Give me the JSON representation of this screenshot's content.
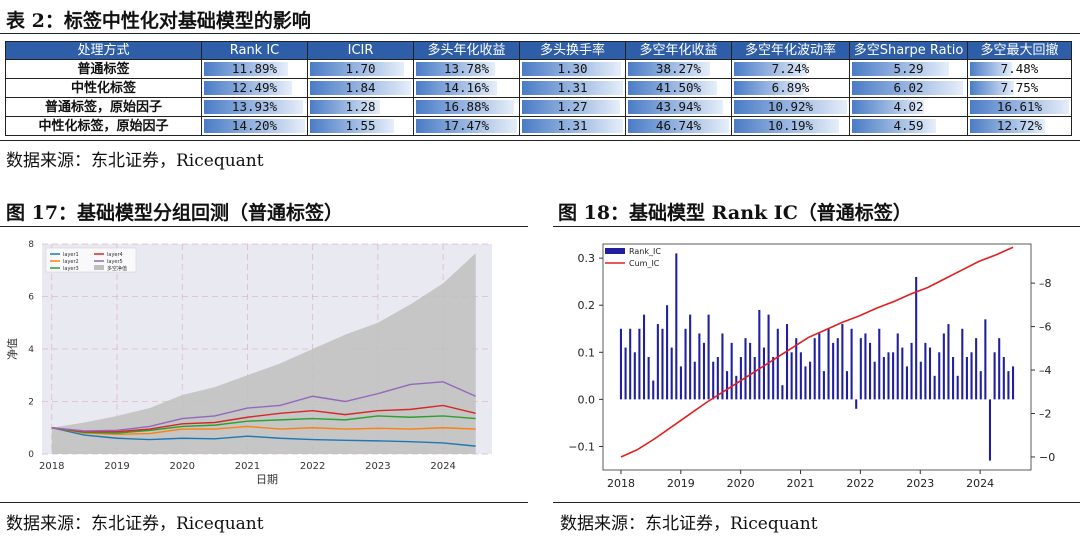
{
  "table": {
    "title": "表 2：标签中性化对基础模型的影响",
    "headers": [
      "处理方式",
      "Rank IC",
      "ICIR",
      "多头年化收益",
      "多头换手率",
      "多空年化收益",
      "多空年化波动率",
      "多空Sharpe Ratio",
      "多空最大回撤"
    ],
    "rows": [
      {
        "label": "普通标签",
        "values": [
          "11.89%",
          "1.70",
          "13.78%",
          "1.30",
          "38.27%",
          "7.24%",
          "5.29",
          "7.48%"
        ],
        "fills": [
          0.84,
          0.93,
          0.79,
          0.98,
          0.82,
          0.66,
          0.86,
          0.45
        ]
      },
      {
        "label": "中性化标签",
        "values": [
          "12.49%",
          "1.84",
          "14.16%",
          "1.31",
          "41.50%",
          "6.89%",
          "6.02",
          "7.75%"
        ],
        "fills": [
          0.88,
          1.0,
          0.81,
          1.0,
          0.89,
          0.63,
          0.98,
          0.47
        ]
      },
      {
        "label": "普通标签，原始因子",
        "values": [
          "13.93%",
          "1.28",
          "16.88%",
          "1.27",
          "43.94%",
          "10.92%",
          "4.02",
          "16.61%"
        ],
        "fills": [
          0.98,
          0.7,
          0.97,
          0.97,
          0.94,
          1.0,
          0.65,
          1.0
        ]
      },
      {
        "label": "中性化标签，原始因子",
        "values": [
          "14.20%",
          "1.55",
          "17.47%",
          "1.31",
          "46.74%",
          "10.19%",
          "4.59",
          "12.72%"
        ],
        "fills": [
          1.0,
          0.84,
          1.0,
          1.0,
          1.0,
          0.93,
          0.75,
          0.77
        ]
      }
    ],
    "source": "数据来源：东北证券，Ricequant"
  },
  "figure17": {
    "title": "图 17：基础模型分组回测（普通标签）",
    "source": "数据来源：东北证券，Ricequant"
  },
  "figure18": {
    "title": "图 18：基础模型 Rank IC（普通标签）",
    "source": "数据来源：东北证券，Ricequant"
  },
  "chart_data": [
    {
      "type": "area",
      "xlabel": "日期",
      "ylabel": "净值",
      "xticks": [
        "2018",
        "2019",
        "2020",
        "2021",
        "2022",
        "2023",
        "2024"
      ],
      "ylim": [
        0,
        8
      ],
      "yticks": [
        0,
        2,
        4,
        6,
        8
      ],
      "grid": true,
      "legend_position": "top-left",
      "x": [
        2018.0,
        2018.5,
        2019.0,
        2019.5,
        2020.0,
        2020.5,
        2021.0,
        2021.5,
        2022.0,
        2022.5,
        2023.0,
        2023.5,
        2024.0,
        2024.5
      ],
      "series": [
        {
          "name": "layer1",
          "color": "#1f77b4",
          "values": [
            1.0,
            0.72,
            0.6,
            0.55,
            0.6,
            0.58,
            0.68,
            0.6,
            0.55,
            0.52,
            0.5,
            0.47,
            0.42,
            0.3
          ]
        },
        {
          "name": "layer2",
          "color": "#ff7f0e",
          "values": [
            1.0,
            0.8,
            0.75,
            0.78,
            0.95,
            0.95,
            1.05,
            0.95,
            1.0,
            0.95,
            0.98,
            0.95,
            1.0,
            0.95
          ]
        },
        {
          "name": "layer3",
          "color": "#2ca02c",
          "values": [
            1.0,
            0.82,
            0.8,
            0.9,
            1.05,
            1.1,
            1.25,
            1.3,
            1.35,
            1.3,
            1.45,
            1.4,
            1.45,
            1.35
          ]
        },
        {
          "name": "layer4",
          "color": "#d62728",
          "values": [
            1.0,
            0.85,
            0.85,
            0.95,
            1.15,
            1.2,
            1.4,
            1.55,
            1.65,
            1.5,
            1.65,
            1.7,
            1.85,
            1.55
          ]
        },
        {
          "name": "layer5",
          "color": "#9467bd",
          "values": [
            1.0,
            0.88,
            0.9,
            1.05,
            1.35,
            1.45,
            1.75,
            1.85,
            2.2,
            2.0,
            2.3,
            2.65,
            2.75,
            2.2
          ]
        },
        {
          "name": "多空净值",
          "color": "#bfbfbf",
          "values": [
            1.0,
            1.2,
            1.45,
            1.75,
            2.25,
            2.55,
            3.0,
            3.45,
            4.0,
            4.55,
            5.0,
            5.7,
            6.5,
            7.65
          ]
        }
      ]
    },
    {
      "type": "bar",
      "xticks": [
        "2018",
        "2019",
        "2020",
        "2021",
        "2022",
        "2023",
        "2024"
      ],
      "ylim": [
        -0.15,
        0.33
      ],
      "yticks": [
        -0.1,
        0.0,
        0.1,
        0.2,
        0.3
      ],
      "y2ticks": [
        0,
        2,
        4,
        6,
        8
      ],
      "y2lim": [
        -0.6,
        9.8
      ],
      "legend_position": "top-left",
      "series": [
        {
          "name": "Rank_IC",
          "color": "#1f1fa0",
          "values": [
            0.15,
            0.11,
            0.15,
            0.1,
            0.15,
            0.18,
            0.09,
            0.04,
            0.16,
            0.15,
            0.2,
            0.11,
            0.31,
            0.07,
            0.15,
            0.18,
            0.08,
            0.14,
            0.12,
            0.18,
            0.08,
            0.09,
            0.14,
            0.06,
            0.12,
            0.05,
            0.09,
            0.13,
            0.12,
            0.09,
            0.19,
            0.11,
            0.18,
            0.09,
            0.15,
            0.03,
            0.16,
            0.1,
            0.13,
            0.1,
            0.07,
            0.08,
            0.13,
            0.14,
            0.06,
            0.15,
            0.12,
            0.13,
            0.16,
            0.06,
            0.15,
            -0.02,
            0.13,
            0.14,
            0.12,
            0.08,
            0.15,
            0.09,
            0.1,
            0.1,
            0.14,
            0.11,
            0.07,
            0.12,
            0.26,
            0.08,
            0.12,
            0.11,
            0.05,
            0.1,
            0.14,
            0.16,
            0.09,
            0.05,
            0.15,
            0.09,
            0.1,
            0.13,
            0.06,
            0.17,
            -0.13,
            0.1,
            0.13,
            0.09,
            0.06,
            0.07
          ]
        },
        {
          "name": "Cum_IC",
          "color": "#e02020",
          "values": [
            0.0,
            0.35,
            0.85,
            1.4,
            1.95,
            2.5,
            3.0,
            3.5,
            4.0,
            4.5,
            5.0,
            5.5,
            5.85,
            6.2,
            6.5,
            6.85,
            7.15,
            7.5,
            7.8,
            8.2,
            8.6,
            9.0,
            9.3,
            9.65
          ]
        }
      ]
    }
  ]
}
